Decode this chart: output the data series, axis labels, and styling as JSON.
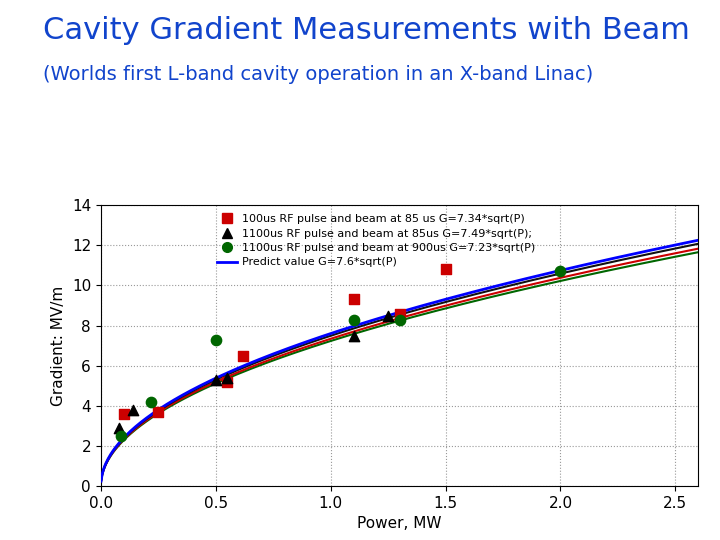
{
  "title": "Cavity Gradient Measurements with Beam",
  "subtitle": "(Worlds first L-band cavity operation in an X-band Linac)",
  "xlabel": "Power, MW",
  "ylabel": "Gradient: MV/m",
  "xlim": [
    0,
    2.6
  ],
  "ylim": [
    0,
    14
  ],
  "xticks": [
    0,
    0.5,
    1,
    1.5,
    2,
    2.5
  ],
  "yticks": [
    0,
    2,
    4,
    6,
    8,
    10,
    12,
    14
  ],
  "title_color": "#1144CC",
  "subtitle_color": "#1144CC",
  "background_color": "#FFFFFF",
  "series": {
    "red_squares": {
      "label": "100us RF pulse and beam at 85 us G=7.34*sqrt(P)",
      "color": "#CC0000",
      "marker": "s",
      "x": [
        0.1,
        0.25,
        0.55,
        0.62,
        1.1,
        1.3,
        1.5
      ],
      "y": [
        3.6,
        3.7,
        5.2,
        6.5,
        9.3,
        8.6,
        10.8
      ]
    },
    "black_triangles": {
      "label": "1100us RF pulse and beam at 85us G=7.49*sqrt(P);",
      "color": "#000000",
      "marker": "^",
      "x": [
        0.08,
        0.14,
        0.5,
        0.55,
        1.1,
        1.25
      ],
      "y": [
        2.9,
        3.8,
        5.3,
        5.4,
        7.5,
        8.5
      ]
    },
    "green_circles": {
      "label": "1100us RF pulse and beam at 900us G=7.23*sqrt(P)",
      "color": "#006600",
      "marker": "o",
      "x": [
        0.09,
        0.22,
        0.5,
        1.1,
        1.3,
        2.0
      ],
      "y": [
        2.5,
        4.2,
        7.3,
        8.3,
        8.3,
        10.7
      ]
    }
  },
  "curves": {
    "blue": {
      "label": "Predict value G=7.6*sqrt(P)",
      "color": "#0000FF",
      "coeff": 7.6
    },
    "red": {
      "color": "#CC0000",
      "coeff": 7.34
    },
    "black": {
      "color": "#111111",
      "coeff": 7.49
    },
    "green": {
      "color": "#006600",
      "coeff": 7.23
    }
  },
  "title_fontsize": 22,
  "subtitle_fontsize": 14,
  "legend_fontsize": 8,
  "axis_label_fontsize": 11,
  "tick_fontsize": 11
}
